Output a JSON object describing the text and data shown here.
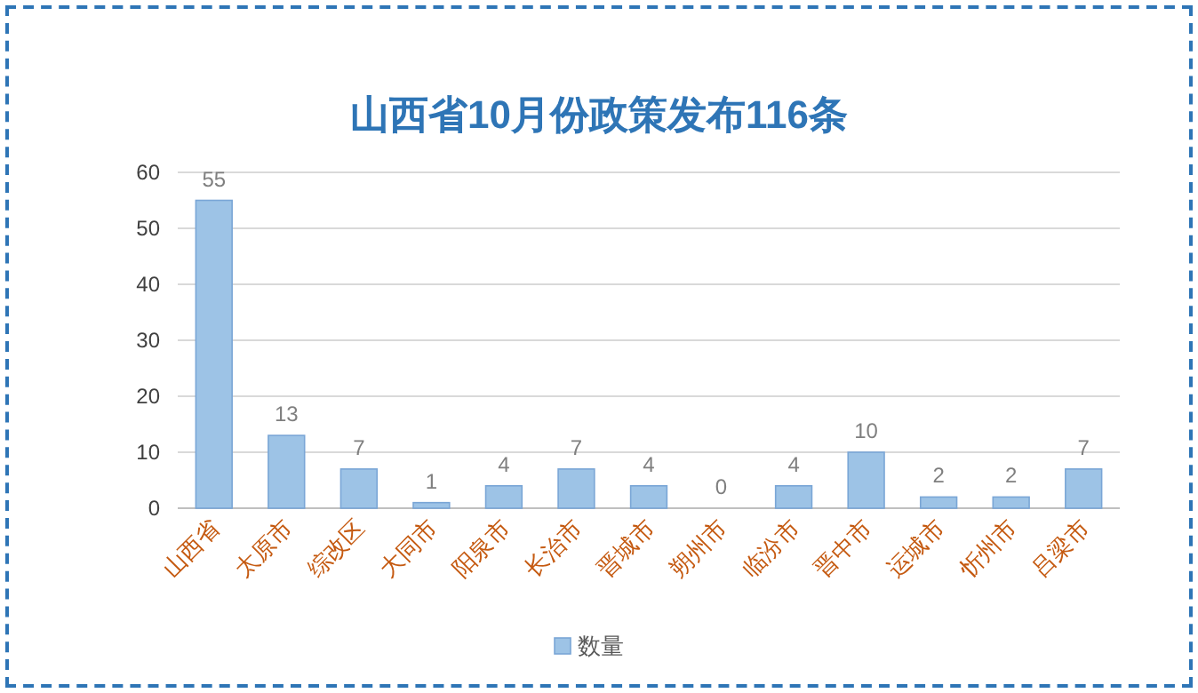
{
  "chart_data": {
    "type": "bar",
    "title": "山西省10月份政策发布116条",
    "categories": [
      "山西省",
      "太原市",
      "综改区",
      "大同市",
      "阳泉市",
      "长治市",
      "晋城市",
      "朔州市",
      "临汾市",
      "晋中市",
      "运城市",
      "忻州市",
      "吕梁市"
    ],
    "series": [
      {
        "name": "数量",
        "color": "#9dc3e6",
        "values": [
          55,
          13,
          7,
          1,
          4,
          7,
          4,
          0,
          4,
          10,
          2,
          2,
          7
        ]
      }
    ],
    "ylim": [
      0,
      60
    ],
    "yticks": [
      0,
      10,
      20,
      30,
      40,
      50,
      60
    ],
    "grid": "y",
    "legend": "bottom",
    "data_labels": true
  }
}
